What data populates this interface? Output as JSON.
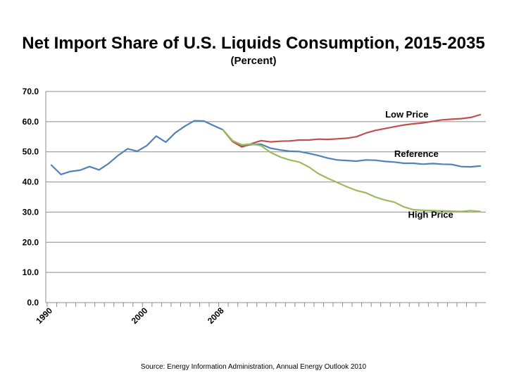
{
  "chart_data": {
    "type": "line",
    "title": "Net Import Share of U.S. Liquids Consumption, 2015-2035",
    "subtitle": "(Percent)",
    "source": "Source: Energy Information Administration, Annual Energy Outlook 2010",
    "ylim": [
      0,
      70
    ],
    "xlim": [
      1990,
      2035
    ],
    "y_ticks": [
      "0.0",
      "10.0",
      "20.0",
      "30.0",
      "40.0",
      "50.0",
      "60.0",
      "70.0"
    ],
    "x_ticks": [
      "1990",
      "2000",
      "2008"
    ],
    "grid": true,
    "series": [
      {
        "name": "Reference",
        "color": "#4f81bd",
        "x": [
          1990,
          1991,
          1992,
          1993,
          1994,
          1995,
          1996,
          1997,
          1998,
          1999,
          2000,
          2001,
          2002,
          2003,
          2004,
          2005,
          2006,
          2007,
          2008,
          2009,
          2010,
          2011,
          2012,
          2013,
          2014,
          2015,
          2016,
          2017,
          2018,
          2019,
          2020,
          2021,
          2022,
          2023,
          2024,
          2025,
          2026,
          2027,
          2028,
          2029,
          2030,
          2031,
          2032,
          2033,
          2034,
          2035
        ],
        "values": [
          45.6,
          42.5,
          43.5,
          43.9,
          45.1,
          44.0,
          46.1,
          48.8,
          51.0,
          50.2,
          52.0,
          55.2,
          53.2,
          56.3,
          58.5,
          60.3,
          60.2,
          58.7,
          57.3,
          53.5,
          51.8,
          52.4,
          52.5,
          51.2,
          50.6,
          50.2,
          50.1,
          49.5,
          48.8,
          47.9,
          47.3,
          47.1,
          46.9,
          47.3,
          47.2,
          46.8,
          46.6,
          46.2,
          46.2,
          45.9,
          46.1,
          45.9,
          45.8,
          45.1,
          45.0,
          45.3
        ]
      },
      {
        "name": "Low Price",
        "color": "#c0504d",
        "x": [
          2008,
          2009,
          2010,
          2011,
          2012,
          2013,
          2014,
          2015,
          2016,
          2017,
          2018,
          2019,
          2020,
          2021,
          2022,
          2023,
          2024,
          2025,
          2026,
          2027,
          2028,
          2029,
          2030,
          2031,
          2032,
          2033,
          2034,
          2035
        ],
        "values": [
          57.3,
          53.4,
          51.6,
          52.7,
          53.7,
          53.3,
          53.5,
          53.6,
          53.9,
          53.9,
          54.2,
          54.1,
          54.3,
          54.5,
          55.0,
          56.2,
          57.1,
          57.7,
          58.3,
          58.9,
          59.3,
          59.6,
          60.1,
          60.6,
          60.8,
          61.0,
          61.4,
          62.3
        ]
      },
      {
        "name": "High Price",
        "color": "#9bbb59",
        "x": [
          2008,
          2009,
          2010,
          2011,
          2012,
          2013,
          2014,
          2015,
          2016,
          2017,
          2018,
          2019,
          2020,
          2021,
          2022,
          2023,
          2024,
          2025,
          2026,
          2027,
          2028,
          2029,
          2030,
          2031,
          2032,
          2033,
          2034,
          2035
        ],
        "values": [
          57.3,
          53.7,
          52.3,
          52.6,
          52.0,
          49.8,
          48.3,
          47.3,
          46.6,
          45.0,
          42.8,
          41.2,
          39.8,
          38.4,
          37.2,
          36.4,
          35.0,
          34.0,
          33.3,
          31.7,
          30.8,
          30.6,
          30.5,
          30.4,
          30.3,
          30.2,
          30.5,
          30.2
        ]
      }
    ]
  }
}
